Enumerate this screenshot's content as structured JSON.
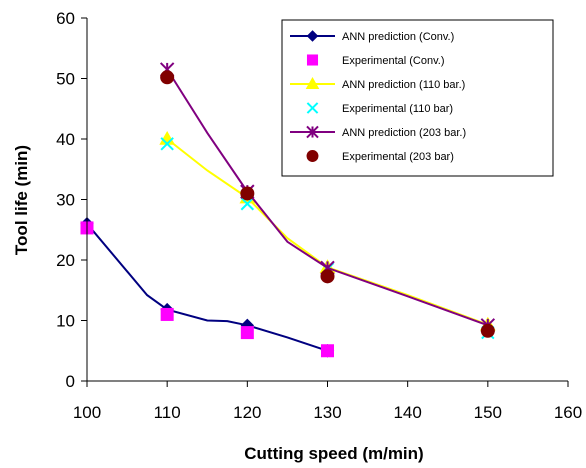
{
  "chart_data": {
    "type": "line",
    "xlabel": "Cutting speed (m/min)",
    "ylabel": "Tool life (min)",
    "xlim": [
      100,
      160
    ],
    "ylim": [
      0,
      60
    ],
    "xticks": [
      100,
      110,
      120,
      130,
      140,
      150,
      160
    ],
    "yticks": [
      0,
      10,
      20,
      30,
      40,
      50,
      60
    ],
    "grid": false,
    "legend_position": "top-right",
    "series": [
      {
        "name": "ANN prediction (Conv.)",
        "kind": "line",
        "color": "#000080",
        "marker": "diamond",
        "x": [
          100,
          107.5,
          110,
          115,
          117.5,
          120,
          125,
          130
        ],
        "y": [
          26,
          14.2,
          11.8,
          10,
          9.9,
          9.2,
          7.2,
          5
        ],
        "marker_x": [
          100,
          110,
          120,
          130
        ],
        "marker_y": [
          26,
          11.8,
          9.2,
          5
        ]
      },
      {
        "name": "Experimental (Conv.)",
        "kind": "scatter",
        "color": "#ff00ff",
        "marker": "square",
        "x": [
          100,
          110,
          120,
          130
        ],
        "y": [
          25.3,
          11,
          8,
          5
        ]
      },
      {
        "name": "ANN prediction (110 bar.)",
        "kind": "line",
        "color": "#ffff00",
        "marker": "triangle",
        "x": [
          110,
          115,
          120,
          125,
          130,
          140,
          150
        ],
        "y": [
          40,
          34.8,
          30.3,
          23.6,
          18.8,
          14.2,
          9.3
        ],
        "marker_x": [
          110,
          120,
          130,
          150
        ],
        "marker_y": [
          40,
          30.3,
          18.8,
          9.3
        ]
      },
      {
        "name": "Experimental (110 bar)",
        "kind": "scatter",
        "color": "#00ffff",
        "marker": "x",
        "x": [
          110,
          120,
          130,
          150
        ],
        "y": [
          39.2,
          29.3,
          18.5,
          8
        ]
      },
      {
        "name": "ANN prediction (203 bar.)",
        "kind": "line",
        "color": "#800080",
        "marker": "asterisk",
        "x": [
          110,
          115,
          120,
          125,
          130,
          140,
          150
        ],
        "y": [
          51.5,
          41,
          31.3,
          23,
          18.7,
          14,
          9.2
        ],
        "marker_x": [
          110,
          120,
          130,
          150
        ],
        "marker_y": [
          51.5,
          31.3,
          18.7,
          9.2
        ]
      },
      {
        "name": "Experimental (203 bar)",
        "kind": "scatter",
        "color": "#800000",
        "marker": "circle",
        "x": [
          110,
          120,
          130,
          150
        ],
        "y": [
          50.2,
          31,
          17.3,
          8.3
        ]
      }
    ]
  }
}
